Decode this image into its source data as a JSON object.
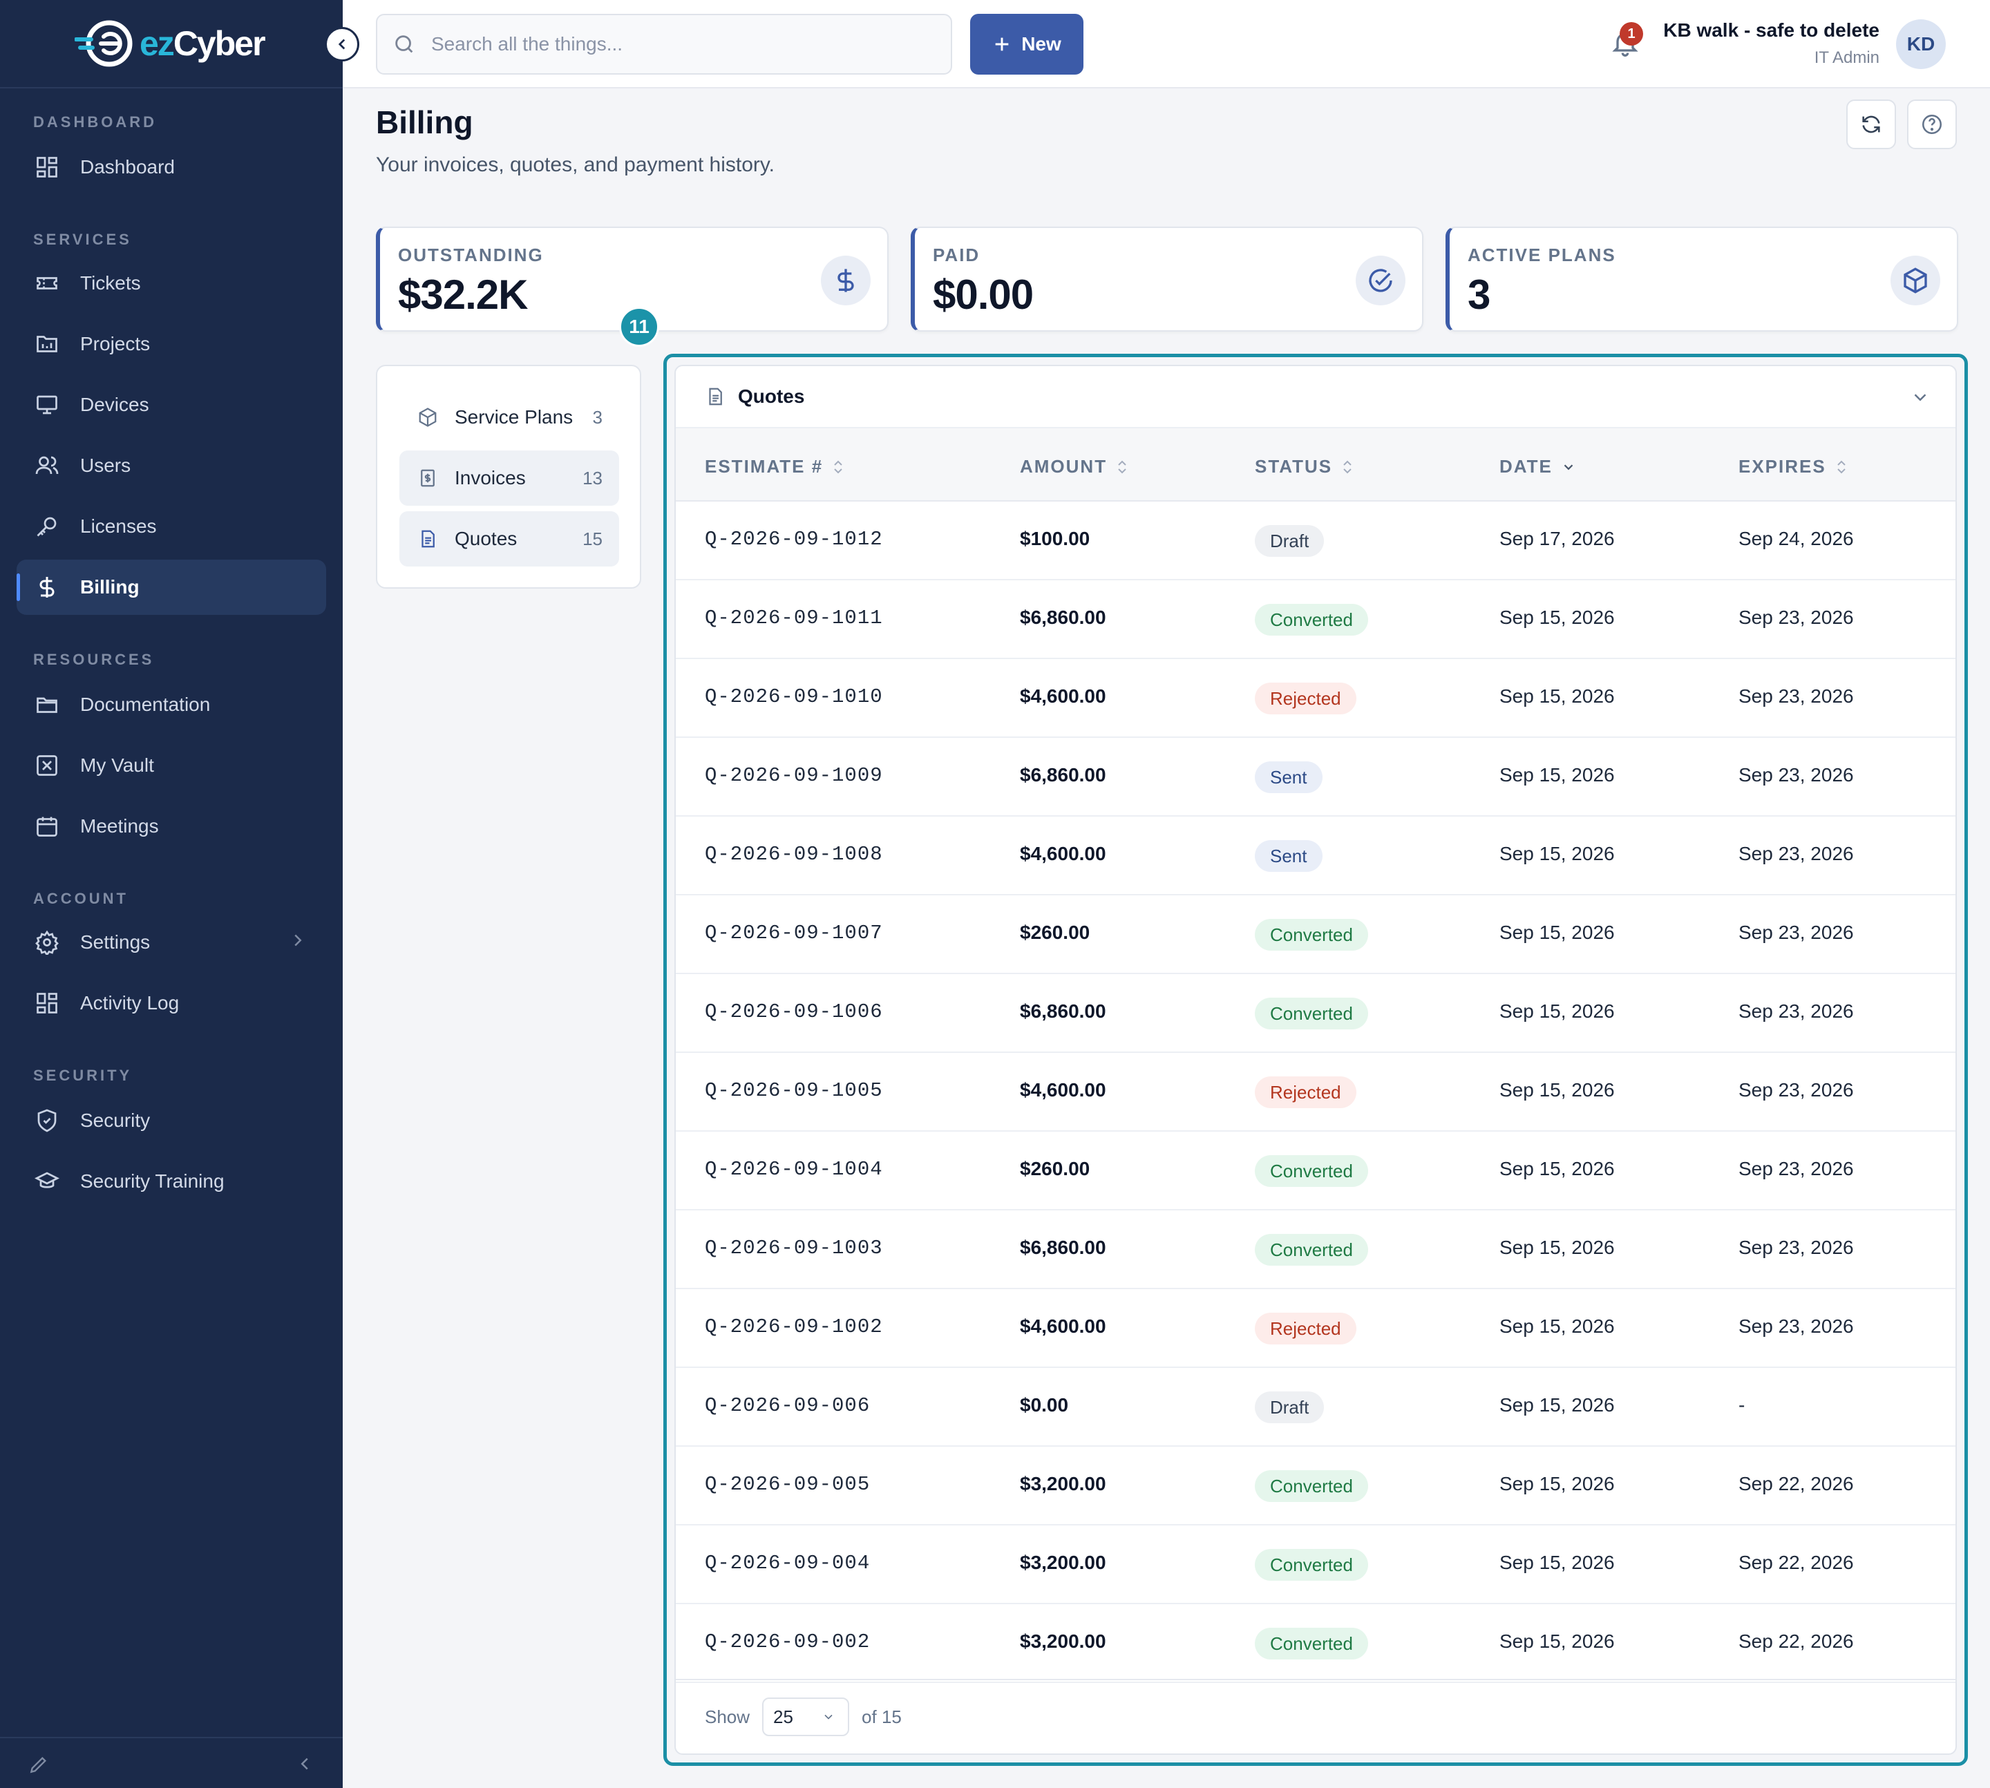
{
  "app": {
    "brand_ez": "ez",
    "brand_cyber": "Cyber"
  },
  "sidebar": {
    "sections": [
      {
        "label": "DASHBOARD"
      },
      {
        "label": "SERVICES"
      },
      {
        "label": "RESOURCES"
      },
      {
        "label": "ACCOUNT"
      },
      {
        "label": "SECURITY"
      }
    ],
    "items": [
      {
        "label": "Dashboard",
        "icon": "dashboard-grid-icon"
      },
      {
        "label": "Tickets",
        "icon": "ticket-icon"
      },
      {
        "label": "Projects",
        "icon": "projects-icon"
      },
      {
        "label": "Devices",
        "icon": "monitor-icon"
      },
      {
        "label": "Users",
        "icon": "users-icon"
      },
      {
        "label": "Licenses",
        "icon": "key-icon"
      },
      {
        "label": "Billing",
        "icon": "dollar-icon",
        "active": true
      },
      {
        "label": "Documentation",
        "icon": "folder-icon"
      },
      {
        "label": "My Vault",
        "icon": "vault-icon"
      },
      {
        "label": "Meetings",
        "icon": "calendar-icon"
      },
      {
        "label": "Settings",
        "icon": "gear-icon"
      },
      {
        "label": "Activity Log",
        "icon": "activity-grid-icon"
      },
      {
        "label": "Security",
        "icon": "shield-icon"
      },
      {
        "label": "Security Training",
        "icon": "graduation-cap-icon"
      }
    ]
  },
  "topbar": {
    "search_placeholder": "Search all the things...",
    "new_label": "New",
    "notification_count": "1",
    "user_name": "KB walk - safe to delete",
    "user_role": "IT Admin",
    "avatar_initials": "KD"
  },
  "page": {
    "title": "Billing",
    "subtitle": "Your invoices, quotes, and payment history."
  },
  "stats": [
    {
      "label": "OUTSTANDING",
      "value": "$32.2K",
      "icon": "dollar-icon"
    },
    {
      "label": "PAID",
      "value": "$0.00",
      "icon": "check-circle-icon"
    },
    {
      "label": "ACTIVE PLANS",
      "value": "3",
      "icon": "package-icon"
    }
  ],
  "step_badge": "11",
  "subnav": [
    {
      "label": "Service Plans",
      "count": "3"
    },
    {
      "label": "Invoices",
      "count": "13"
    },
    {
      "label": "Quotes",
      "count": "15"
    }
  ],
  "quotes": {
    "title": "Quotes",
    "columns": [
      "ESTIMATE #",
      "AMOUNT",
      "STATUS",
      "DATE",
      "EXPIRES"
    ],
    "rows": [
      {
        "estimate": "Q-2026-09-1012",
        "amount": "$100.00",
        "status": "Draft",
        "date": "Sep 17, 2026",
        "expires": "Sep 24, 2026"
      },
      {
        "estimate": "Q-2026-09-1011",
        "amount": "$6,860.00",
        "status": "Converted",
        "date": "Sep 15, 2026",
        "expires": "Sep 23, 2026"
      },
      {
        "estimate": "Q-2026-09-1010",
        "amount": "$4,600.00",
        "status": "Rejected",
        "date": "Sep 15, 2026",
        "expires": "Sep 23, 2026"
      },
      {
        "estimate": "Q-2026-09-1009",
        "amount": "$6,860.00",
        "status": "Sent",
        "date": "Sep 15, 2026",
        "expires": "Sep 23, 2026"
      },
      {
        "estimate": "Q-2026-09-1008",
        "amount": "$4,600.00",
        "status": "Sent",
        "date": "Sep 15, 2026",
        "expires": "Sep 23, 2026"
      },
      {
        "estimate": "Q-2026-09-1007",
        "amount": "$260.00",
        "status": "Converted",
        "date": "Sep 15, 2026",
        "expires": "Sep 23, 2026"
      },
      {
        "estimate": "Q-2026-09-1006",
        "amount": "$6,860.00",
        "status": "Converted",
        "date": "Sep 15, 2026",
        "expires": "Sep 23, 2026"
      },
      {
        "estimate": "Q-2026-09-1005",
        "amount": "$4,600.00",
        "status": "Rejected",
        "date": "Sep 15, 2026",
        "expires": "Sep 23, 2026"
      },
      {
        "estimate": "Q-2026-09-1004",
        "amount": "$260.00",
        "status": "Converted",
        "date": "Sep 15, 2026",
        "expires": "Sep 23, 2026"
      },
      {
        "estimate": "Q-2026-09-1003",
        "amount": "$6,860.00",
        "status": "Converted",
        "date": "Sep 15, 2026",
        "expires": "Sep 23, 2026"
      },
      {
        "estimate": "Q-2026-09-1002",
        "amount": "$4,600.00",
        "status": "Rejected",
        "date": "Sep 15, 2026",
        "expires": "Sep 23, 2026"
      },
      {
        "estimate": "Q-2026-09-006",
        "amount": "$0.00",
        "status": "Draft",
        "date": "Sep 15, 2026",
        "expires": "-"
      },
      {
        "estimate": "Q-2026-09-005",
        "amount": "$3,200.00",
        "status": "Converted",
        "date": "Sep 15, 2026",
        "expires": "Sep 22, 2026"
      },
      {
        "estimate": "Q-2026-09-004",
        "amount": "$3,200.00",
        "status": "Converted",
        "date": "Sep 15, 2026",
        "expires": "Sep 22, 2026"
      },
      {
        "estimate": "Q-2026-09-002",
        "amount": "$3,200.00",
        "status": "Converted",
        "date": "Sep 15, 2026",
        "expires": "Sep 22, 2026"
      }
    ],
    "pager": {
      "show_label": "Show",
      "page_size": "25",
      "of_label": "of 15"
    }
  },
  "colors": {
    "sidebar_bg": "#1b2a4a",
    "accent": "#3c5ba8",
    "highlight": "#1b8fa6"
  }
}
